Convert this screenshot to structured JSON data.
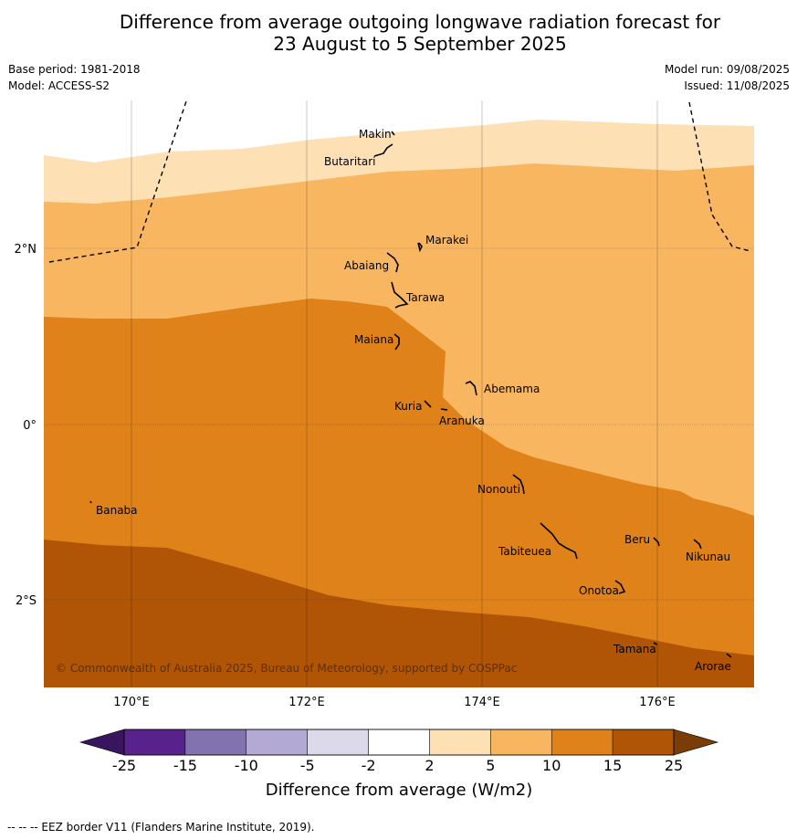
{
  "title_line1": "Difference from average outgoing longwave radiation forecast for",
  "title_line2": "23 August to 5 September 2025",
  "meta": {
    "base_period": "Base period: 1981-2018",
    "model": "Model: ACCESS-S2",
    "model_run": "Model run: 09/08/2025",
    "issued": "Issued: 11/08/2025"
  },
  "map": {
    "lon_labels": [
      "170°E",
      "172°E",
      "174°E",
      "176°E"
    ],
    "lat_labels": [
      "2°N",
      "0°",
      "2°S"
    ],
    "places": [
      {
        "name": "Makin"
      },
      {
        "name": "Butaritari"
      },
      {
        "name": "Marakei"
      },
      {
        "name": "Abaiang"
      },
      {
        "name": "Tarawa"
      },
      {
        "name": "Maiana"
      },
      {
        "name": "Abemama"
      },
      {
        "name": "Kuria"
      },
      {
        "name": "Aranuka"
      },
      {
        "name": "Nonouti"
      },
      {
        "name": "Banaba"
      },
      {
        "name": "Beru"
      },
      {
        "name": "Tabiteuea"
      },
      {
        "name": "Nikunau"
      },
      {
        "name": "Onotoa"
      },
      {
        "name": "Tamana"
      },
      {
        "name": "Arorae"
      }
    ],
    "copyright": "© Commonwealth of Australia 2025, Bureau of Meteorology, supported by COSPPac"
  },
  "colorbar": {
    "tick_labels": [
      "-25",
      "-15",
      "-10",
      "-5",
      "-2",
      "2",
      "5",
      "10",
      "15",
      "25"
    ],
    "colors": [
      "#3b1460",
      "#57228c",
      "#8272ae",
      "#b2aad2",
      "#dbd9ea",
      "#ffffff",
      "#fde0b4",
      "#f9b660",
      "#e0821a",
      "#b05506",
      "#7b3d08"
    ],
    "label": "Difference from average (W/m2)"
  },
  "footer": "--  --  -- EEZ border V11 (Flanders Marine Institute, 2019)."
}
